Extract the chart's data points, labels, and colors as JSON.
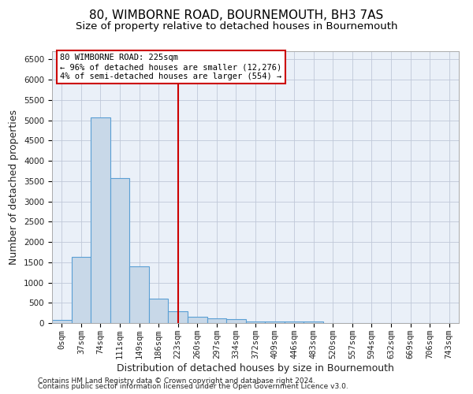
{
  "title": "80, WIMBORNE ROAD, BOURNEMOUTH, BH3 7AS",
  "subtitle": "Size of property relative to detached houses in Bournemouth",
  "xlabel": "Distribution of detached houses by size in Bournemouth",
  "ylabel": "Number of detached properties",
  "footer_line1": "Contains HM Land Registry data © Crown copyright and database right 2024.",
  "footer_line2": "Contains public sector information licensed under the Open Government Licence v3.0.",
  "bar_labels": [
    "0sqm",
    "37sqm",
    "74sqm",
    "111sqm",
    "149sqm",
    "186sqm",
    "223sqm",
    "260sqm",
    "297sqm",
    "334sqm",
    "372sqm",
    "409sqm",
    "446sqm",
    "483sqm",
    "520sqm",
    "557sqm",
    "594sqm",
    "632sqm",
    "669sqm",
    "706sqm",
    "743sqm"
  ],
  "bar_values": [
    75,
    1625,
    5075,
    3575,
    1400,
    600,
    300,
    150,
    125,
    90,
    40,
    40,
    35,
    30,
    0,
    0,
    0,
    0,
    0,
    0,
    0
  ],
  "bar_color": "#c8d8e8",
  "bar_edge_color": "#5a9fd4",
  "bar_edge_width": 0.8,
  "vline_index": 6,
  "vline_color": "#cc0000",
  "annotation_text": "80 WIMBORNE ROAD: 225sqm\n← 96% of detached houses are smaller (12,276)\n4% of semi-detached houses are larger (554) →",
  "annotation_box_color": "#ffffff",
  "annotation_box_edge_color": "#cc0000",
  "ylim": [
    0,
    6700
  ],
  "yticks": [
    0,
    500,
    1000,
    1500,
    2000,
    2500,
    3000,
    3500,
    4000,
    4500,
    5000,
    5500,
    6000,
    6500
  ],
  "grid_color": "#c0c8d8",
  "bg_color": "#eaf0f8",
  "title_fontsize": 11,
  "subtitle_fontsize": 9.5,
  "tick_fontsize": 7.5,
  "axis_label_fontsize": 9,
  "footer_fontsize": 6.5,
  "annotation_fontsize": 7.5
}
